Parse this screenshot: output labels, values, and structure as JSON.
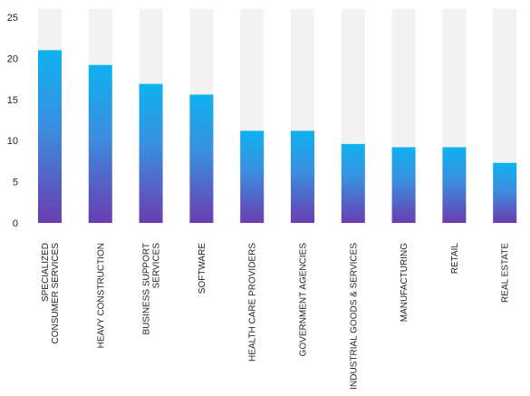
{
  "chart_data": {
    "type": "bar",
    "categories": [
      [
        "SPECIALIZED",
        "CONSUMER SERVICES"
      ],
      [
        "HEAVY CONSTRUCTION"
      ],
      [
        "BUSINESS SUPPORT",
        "SERVICES"
      ],
      [
        "SOFTWARE"
      ],
      [
        "HEALTH CARE PROVIDERS"
      ],
      [
        "GOVERNMENT AGENCIES"
      ],
      [
        "INDUSTRIAL GOODS & SERVICES"
      ],
      [
        "MANUFACTURING"
      ],
      [
        "RETAIL"
      ],
      [
        "REAL ESTATE"
      ]
    ],
    "values": [
      21,
      19.2,
      16.9,
      15.6,
      11.2,
      11.2,
      9.6,
      9.2,
      9.2,
      7.3
    ],
    "ylim": [
      0,
      26
    ],
    "yticks": [
      0,
      5,
      10,
      15,
      20,
      25
    ],
    "track_max": 26,
    "grid": false,
    "colors": {
      "bar_top": "#0eb2f0",
      "bar_mid": "#3b8ee0",
      "bar_bottom": "#6a3db0",
      "track": "#f2f2f2"
    }
  }
}
